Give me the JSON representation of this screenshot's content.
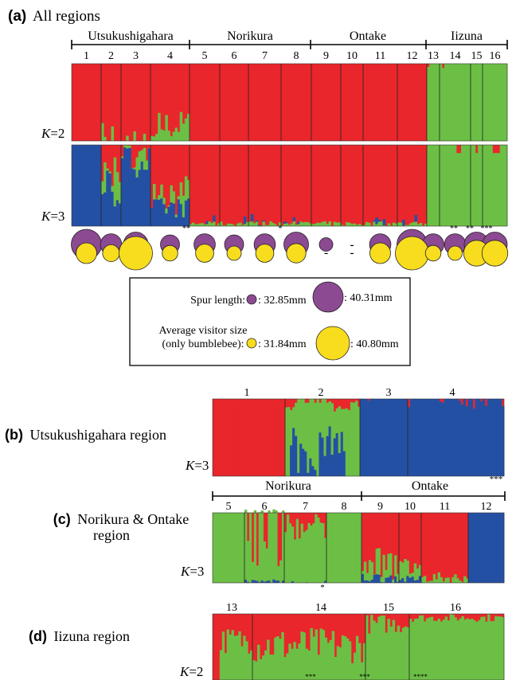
{
  "colors": {
    "red": "#e8262b",
    "green": "#6cbf45",
    "blue": "#2450a4",
    "purple": "#8b4a91",
    "yellow": "#f8dc1e"
  },
  "panel_a": {
    "letter": "(a)",
    "title": "All regions",
    "regions": [
      "Utsukushigahara",
      "Norikura",
      "Ontake",
      "Iizuna"
    ],
    "populations": [
      "1",
      "2",
      "3",
      "4",
      "5",
      "6",
      "7",
      "8",
      "9",
      "10",
      "11",
      "12",
      "13",
      "14",
      "15",
      "16"
    ],
    "k2_label_k": "K",
    "k2_label_val": "=2",
    "k3_label_k": "K",
    "k3_label_val": "=3",
    "significance_marks": [
      "**",
      "*",
      "**",
      "**",
      "***"
    ],
    "spur_sizes": [
      1.0,
      0.6,
      0.75,
      0.5,
      0.6,
      0.5,
      0.6,
      0.75,
      0.25,
      null,
      0.6,
      1.0,
      0.6,
      0.6,
      0.75,
      0.75
    ],
    "visitor_sizes": [
      0.5,
      0.35,
      1.0,
      0.3,
      0.4,
      0.25,
      0.4,
      0.45,
      null,
      null,
      0.5,
      1.0,
      0.3,
      0.25,
      0.7,
      0.7
    ],
    "missing_mark": "-"
  },
  "legend": {
    "spur_label": "Spur length:",
    "spur_min": ": 32.85mm",
    "spur_max": ": 40.31mm",
    "visitor_label_1": "Average visitor size",
    "visitor_label_2": "(only bumblebee):",
    "visitor_min": ": 31.84mm",
    "visitor_max": ": 40.80mm"
  },
  "panel_b": {
    "letter": "(b)",
    "title": "Utsukushigahara region",
    "populations": [
      "1",
      "2",
      "3",
      "4"
    ],
    "k_label_k": "K",
    "k_label_val": "=3",
    "significance_mark": "***"
  },
  "panel_c": {
    "letter": "(c)",
    "title_1": "Norikura & Ontake",
    "title_2": "region",
    "regions": [
      "Norikura",
      "Ontake"
    ],
    "populations": [
      "5",
      "6",
      "7",
      "8",
      "9",
      "10",
      "11",
      "12"
    ],
    "k_label_k": "K",
    "k_label_val": "=3",
    "significance_mark": "*"
  },
  "panel_d": {
    "letter": "(d)",
    "title": "Iizuna region",
    "populations": [
      "13",
      "14",
      "15",
      "16"
    ],
    "k_label_k": "K",
    "k_label_val": "=2",
    "significance_marks": [
      "***",
      "***",
      "****"
    ]
  }
}
